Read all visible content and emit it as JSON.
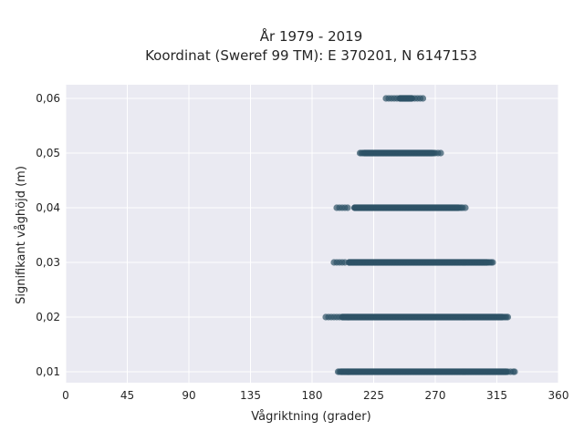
{
  "chart_data": {
    "type": "scatter",
    "title_line1": "År 1979 - 2019",
    "title_line2": "Koordinat (Sweref 99 TM): E 370201, N 6147153",
    "xlabel": "Vågriktning (grader)",
    "ylabel": "Signifikant våghöjd (m)",
    "xlim": [
      0,
      360
    ],
    "ylim": [
      0.008,
      0.0625
    ],
    "x_ticks": [
      0,
      45,
      90,
      135,
      180,
      225,
      270,
      315,
      360
    ],
    "y_ticks": [
      0.01,
      0.02,
      0.03,
      0.04,
      0.05,
      0.06
    ],
    "y_tick_labels": [
      "0,01",
      "0,02",
      "0,03",
      "0,04",
      "0,05",
      "0,06"
    ],
    "grid": true,
    "colors": {
      "background": "#eaeaf2",
      "grid": "#ffffff",
      "marker": "#2e5266"
    },
    "series": [
      {
        "y": 0.01,
        "x_range": [
          199,
          328
        ],
        "x_dense_range": [
          201,
          322
        ],
        "x_sparse": [
          199,
          200,
          323,
          325,
          327,
          328
        ]
      },
      {
        "y": 0.02,
        "x_range": [
          190,
          323
        ],
        "x_dense_range": [
          202,
          319
        ],
        "x_sparse": [
          190,
          192,
          194,
          196,
          198,
          200,
          320,
          321,
          322,
          323
        ]
      },
      {
        "y": 0.03,
        "x_range": [
          196,
          312
        ],
        "x_dense_range": [
          207,
          308
        ],
        "x_sparse": [
          196,
          198,
          200,
          202,
          204,
          309,
          310,
          311,
          312
        ]
      },
      {
        "y": 0.04,
        "x_range": [
          198,
          292
        ],
        "x_dense_range": [
          211,
          287
        ],
        "x_sparse": [
          198,
          200,
          202,
          204,
          206,
          288,
          289,
          290,
          292
        ]
      },
      {
        "y": 0.05,
        "x_range": [
          215,
          274
        ],
        "x_dense_range": [
          218,
          268
        ],
        "x_sparse": [
          215,
          216,
          217,
          269,
          270,
          272,
          274
        ]
      },
      {
        "y": 0.06,
        "x_range": [
          234,
          261
        ],
        "x_dense_range": [
          244,
          253
        ],
        "x_sparse": [
          234,
          236,
          238,
          240,
          242,
          255,
          257,
          259,
          261
        ]
      }
    ]
  }
}
